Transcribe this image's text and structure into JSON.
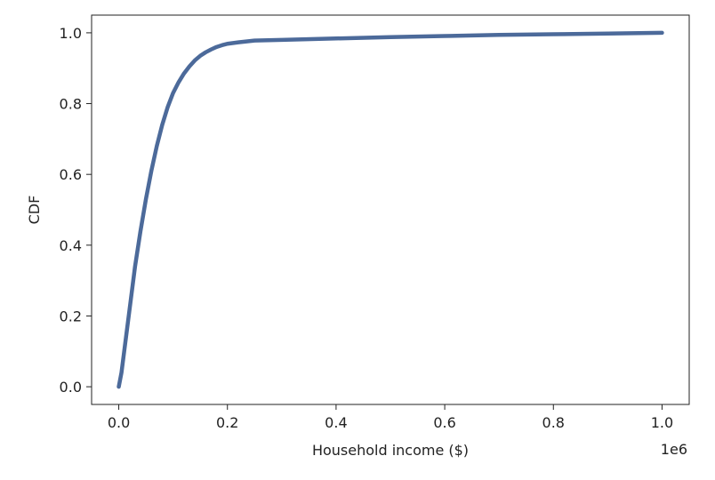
{
  "chart_data": {
    "type": "line",
    "title": "",
    "xlabel": "Household income ($)",
    "ylabel": "CDF",
    "x_offset_label": "1e6",
    "xlim": [
      -0.05,
      1.05
    ],
    "ylim": [
      -0.05,
      1.05
    ],
    "xticks": [
      0.0,
      0.2,
      0.4,
      0.6,
      0.8,
      1.0
    ],
    "xtick_labels": [
      "0.0",
      "0.2",
      "0.4",
      "0.6",
      "0.8",
      "1.0"
    ],
    "yticks": [
      0.0,
      0.2,
      0.4,
      0.6,
      0.8,
      1.0
    ],
    "ytick_labels": [
      "0.0",
      "0.2",
      "0.4",
      "0.6",
      "0.8",
      "1.0"
    ],
    "grid": false,
    "line_color": "#4c6a9a",
    "series": [
      {
        "x": [
          0.0,
          0.005,
          0.01,
          0.02,
          0.03,
          0.04,
          0.05,
          0.06,
          0.07,
          0.08,
          0.09,
          0.1,
          0.11,
          0.12,
          0.13,
          0.14,
          0.15,
          0.16,
          0.17,
          0.18,
          0.19,
          0.2,
          0.22,
          0.25,
          0.3,
          0.4,
          0.5,
          0.6,
          0.7,
          0.8,
          0.9,
          1.0
        ],
        "y": [
          0.0,
          0.04,
          0.1,
          0.22,
          0.34,
          0.44,
          0.53,
          0.61,
          0.68,
          0.74,
          0.79,
          0.83,
          0.86,
          0.885,
          0.905,
          0.922,
          0.935,
          0.945,
          0.953,
          0.96,
          0.965,
          0.969,
          0.973,
          0.978,
          0.98,
          0.984,
          0.988,
          0.991,
          0.994,
          0.996,
          0.998,
          1.0
        ]
      }
    ]
  }
}
